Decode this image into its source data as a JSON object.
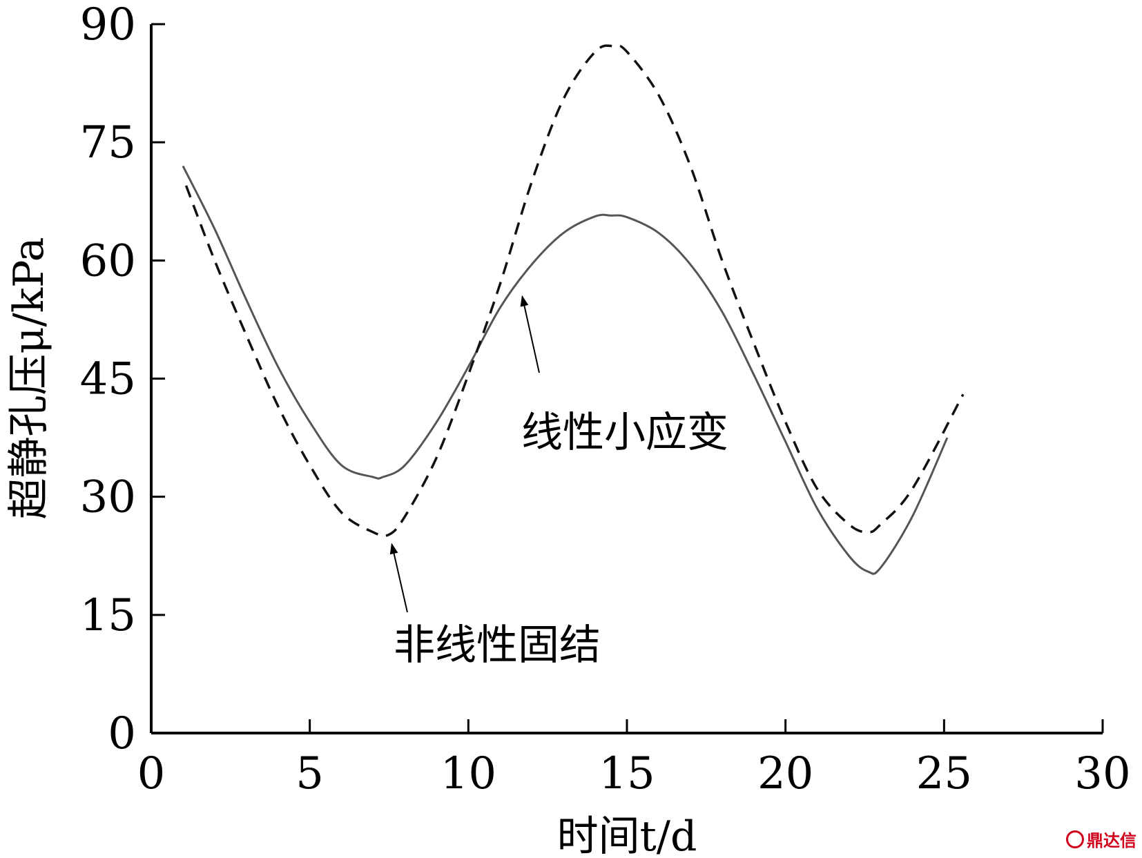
{
  "chart_data": {
    "type": "line",
    "xlabel": "时间t/d",
    "ylabel": "超静孔压μ/kPa",
    "xlim": [
      0,
      30
    ],
    "ylim": [
      0,
      90
    ],
    "xticks": [
      0,
      5,
      10,
      15,
      20,
      25,
      30
    ],
    "yticks": [
      0,
      15,
      30,
      45,
      60,
      75,
      90
    ],
    "grid": false,
    "series": [
      {
        "name": "线性小应变",
        "style": "solid",
        "color": "#555555",
        "x": [
          1,
          2,
          3,
          4,
          5,
          6,
          7,
          7.3,
          8,
          9,
          10,
          11,
          12,
          13,
          14,
          14.5,
          15,
          16,
          17,
          18,
          19,
          20,
          21,
          22,
          22.6,
          23,
          24,
          25.1
        ],
        "y": [
          72,
          64,
          55,
          46.5,
          39.5,
          34,
          32.5,
          32.5,
          34,
          39.5,
          46.5,
          54,
          59.5,
          63.5,
          65.6,
          65.7,
          65.5,
          63.5,
          59.5,
          53.5,
          45.5,
          37,
          28.5,
          22.5,
          20.5,
          21,
          27.5,
          37.5
        ]
      },
      {
        "name": "非线性固结",
        "style": "dashed",
        "color": "#111111",
        "x": [
          1.1,
          2,
          3,
          4,
          5,
          6,
          7,
          7.5,
          8,
          9,
          10,
          11,
          12,
          13,
          14,
          14.6,
          15,
          16,
          17,
          18,
          19,
          20,
          21,
          22,
          22.6,
          23,
          24,
          25.6
        ],
        "y": [
          69.5,
          60,
          50.5,
          41.5,
          34,
          28,
          25.5,
          25.2,
          27.5,
          35,
          45.5,
          57,
          70,
          80.5,
          86.5,
          87.2,
          86.5,
          81,
          72,
          60,
          49.5,
          39.5,
          31,
          26.5,
          25.5,
          26.5,
          31,
          43
        ]
      }
    ],
    "annotations": [
      {
        "text": "线性小应变",
        "arrow_to": [
          11.7,
          57
        ]
      },
      {
        "text": "非线性固结",
        "arrow_to": [
          7.5,
          25.2
        ]
      }
    ]
  },
  "watermark": {
    "text": "鼎达信"
  }
}
